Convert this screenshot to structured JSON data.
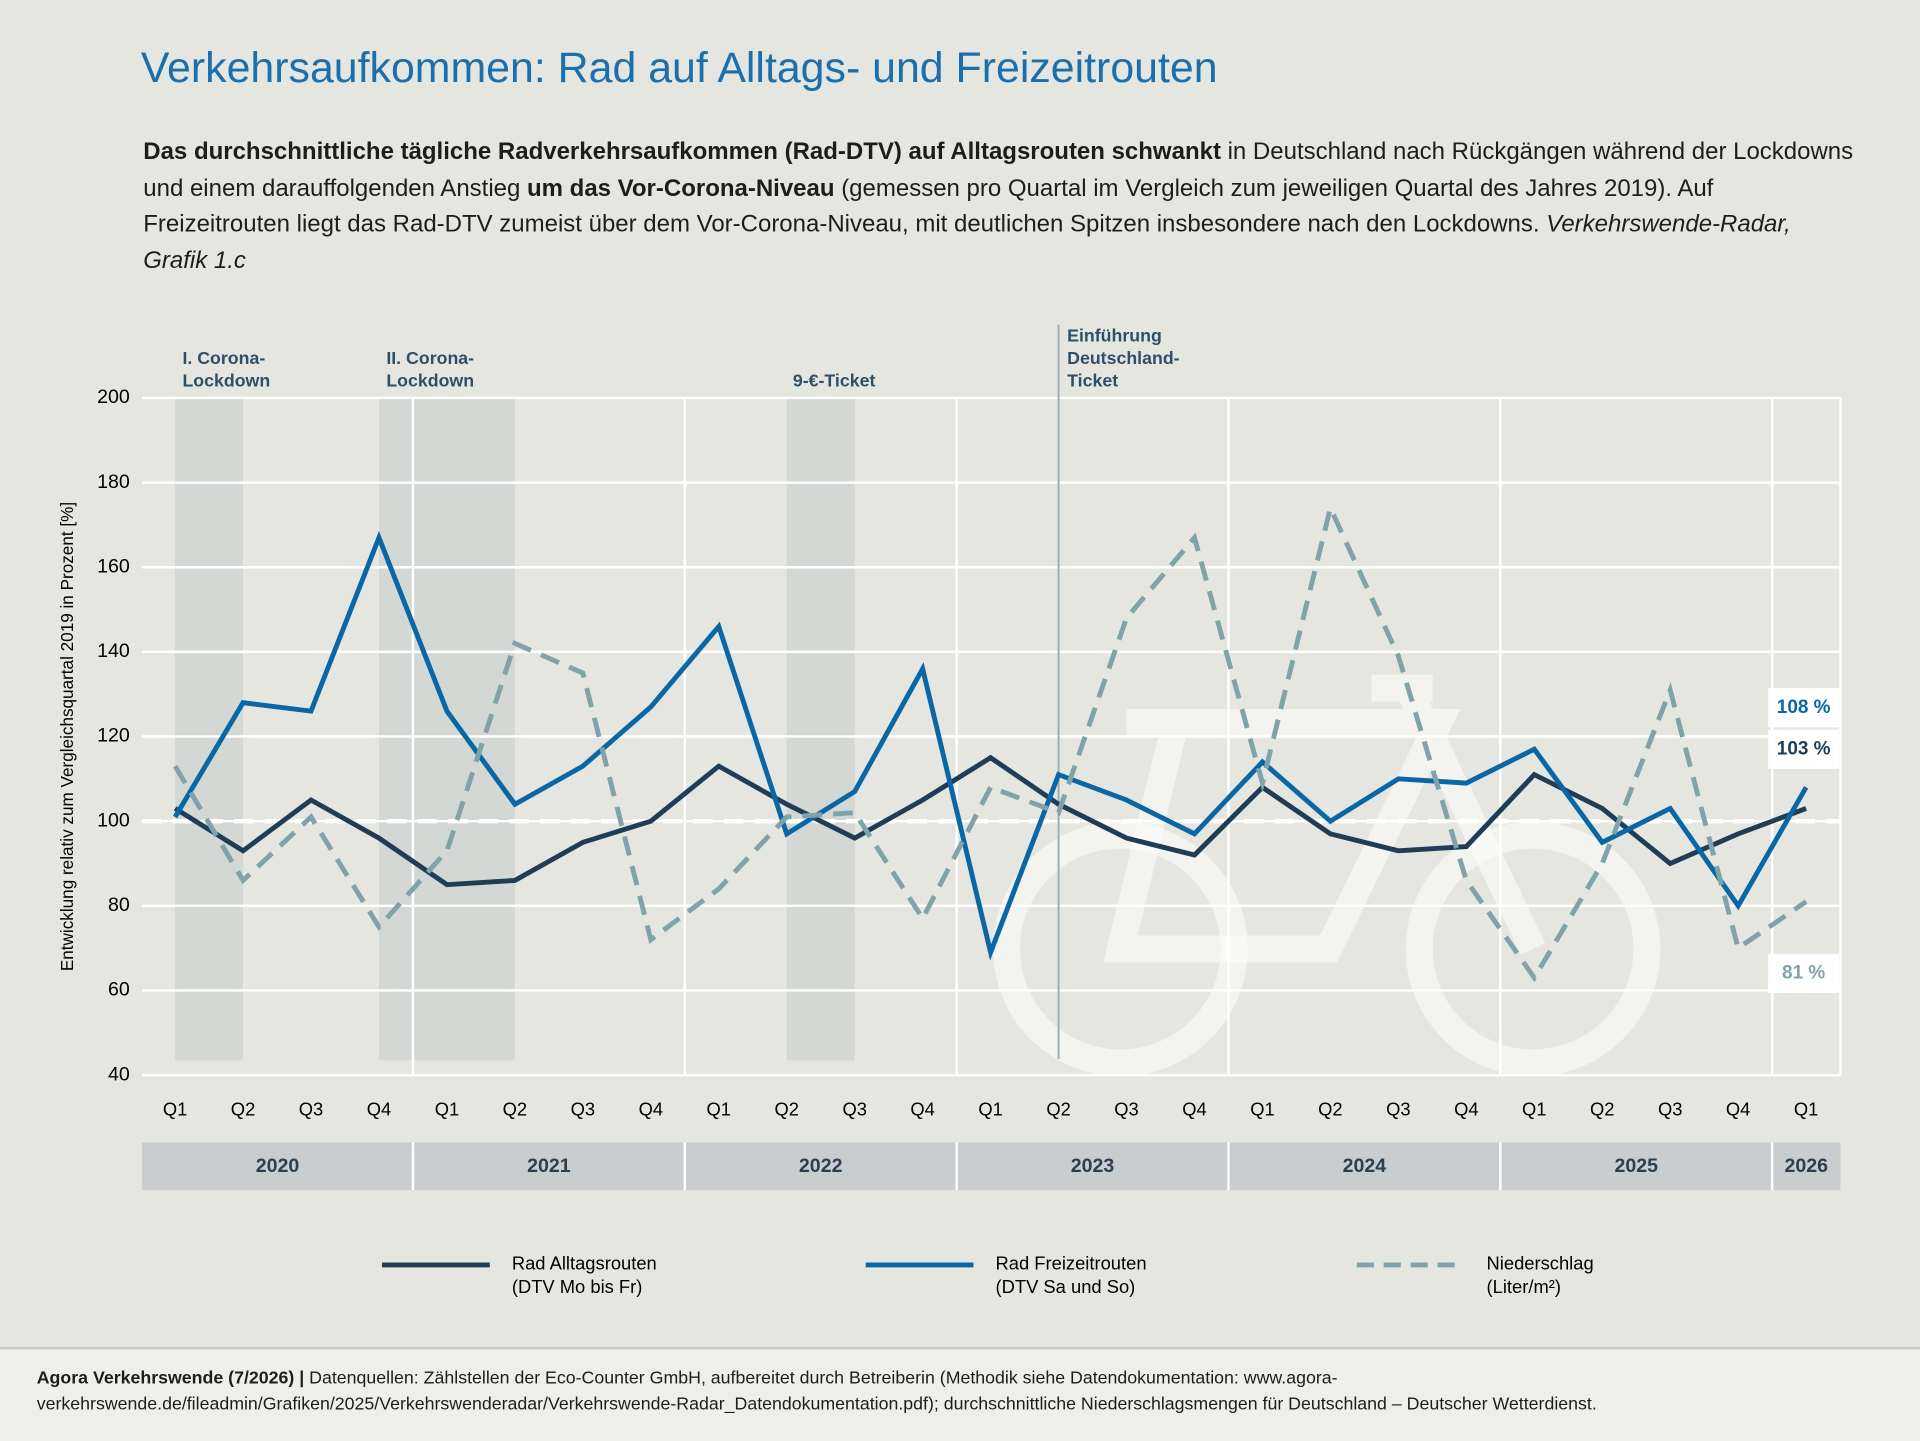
{
  "chart_data": {
    "type": "line",
    "title": "Verkehrsaufkommen: Rad auf Alltags- und Freizeitrouten",
    "description": [
      {
        "text": "Das durchschnittliche tägliche Radverkehrsaufkommen (Rad-DTV) auf Alltagsrouten schwankt",
        "style": "bold"
      },
      {
        "text": " in Deutschland nach Rückgängen während der Lockdowns und einem darauffolgenden Anstieg ",
        "style": "normal"
      },
      {
        "text": "um das Vor-Corona-Niveau",
        "style": "bold"
      },
      {
        "text": " (gemessen pro Quartal im Vergleich zum jeweiligen Quartal des Jahres 2019). Auf Freizeitrouten liegt das Rad-DTV zumeist über dem Vor-Corona-Niveau, mit deutlichen Spitzen insbesondere nach den Lockdowns. ",
        "style": "normal"
      },
      {
        "text": "Verkehrswende-Radar, Grafik 1.c",
        "style": "italic"
      }
    ],
    "y_label": "Entwicklung relativ zum Vergleichsquartal 2019 in Prozent [%]",
    "categories": [
      "Q1",
      "Q2",
      "Q3",
      "Q4",
      "Q1",
      "Q2",
      "Q3",
      "Q4",
      "Q1",
      "Q2",
      "Q3",
      "Q4",
      "Q1",
      "Q2",
      "Q3",
      "Q4",
      "Q1",
      "Q2",
      "Q3",
      "Q4",
      "Q1",
      "Q2",
      "Q3",
      "Q4",
      "Q1"
    ],
    "years": [
      "2020",
      "2021",
      "2022",
      "2023",
      "2024",
      "2025",
      "2026"
    ],
    "ylim": [
      40,
      200
    ],
    "yticks": [
      40,
      60,
      80,
      100,
      120,
      140,
      160,
      180,
      200
    ],
    "grid": true,
    "reference_line": 100,
    "series": [
      {
        "name": "Rad Alltagsrouten",
        "unit_note": "(DTV Mo bis Fr)",
        "color": "#1f3d55",
        "dash": false,
        "values": [
          103,
          93,
          105,
          96,
          85,
          86,
          95,
          100,
          113,
          104,
          96,
          105,
          115,
          104,
          96,
          92,
          108,
          97,
          93,
          94,
          111,
          103,
          90,
          97,
          103
        ],
        "value_labels": [
          null,
          null,
          null,
          null,
          null,
          null,
          null,
          null,
          null,
          null,
          null,
          null,
          null,
          null,
          null,
          null,
          null,
          null,
          null,
          null,
          null,
          null,
          null,
          null,
          "103 %"
        ]
      },
      {
        "name": "Rad Freizeitrouten",
        "unit_note": "(DTV Sa und So)",
        "color": "#0a67a6",
        "dash": false,
        "values": [
          101,
          128,
          126,
          167,
          126,
          104,
          113,
          127,
          146,
          97,
          107,
          136,
          69,
          111,
          105,
          97,
          114,
          100,
          110,
          109,
          117,
          95,
          103,
          80,
          108
        ],
        "value_labels": [
          null,
          null,
          null,
          null,
          null,
          null,
          null,
          null,
          null,
          null,
          null,
          null,
          null,
          null,
          null,
          null,
          null,
          null,
          null,
          null,
          null,
          null,
          null,
          null,
          "108 %"
        ]
      },
      {
        "name": "Niederschlag",
        "unit_note": "(Liter/m²)",
        "color": "#7fa3a8",
        "dash": true,
        "values": [
          113,
          86,
          101,
          75,
          93,
          142,
          135,
          72,
          84,
          101,
          102,
          77,
          108,
          102,
          148,
          167,
          109,
          174,
          139,
          86,
          63,
          90,
          131,
          70,
          81
        ],
        "value_labels": [
          null,
          null,
          null,
          null,
          null,
          null,
          null,
          null,
          null,
          null,
          null,
          null,
          null,
          null,
          null,
          null,
          null,
          null,
          null,
          null,
          null,
          null,
          null,
          null,
          "81 %"
        ]
      }
    ],
    "periods": [
      {
        "lines": [
          "I. Corona-",
          "Lockdown"
        ],
        "from_index": 0,
        "to_index": 1
      },
      {
        "lines": [
          "II. Corona-",
          "Lockdown"
        ],
        "from_index": 3,
        "to_index": 5
      },
      {
        "lines": [
          "9-€-Ticket"
        ],
        "from_index": 9,
        "to_index": 10
      }
    ],
    "events": [
      {
        "lines": [
          "Einführung",
          "Deutschland-",
          "Ticket"
        ],
        "index": 13
      }
    ],
    "footer": [
      {
        "text": "Agora Verkehrswende (7/2026) |",
        "style": "bold"
      },
      {
        "text": " Datenquellen: Zählstellen der Eco-Counter GmbH, aufbereitet durch Betreiberin (Methodik siehe Datendokumentation: www.agora-verkehrswende.de/fileadmin/Grafiken/2025/Verkehrswenderadar/Verkehrswende-Radar_Datendokumentation.pdf); durchschnittliche Niederschlagsmengen für Deutschland – Deutscher Wetterdienst.",
        "style": "normal"
      }
    ]
  }
}
